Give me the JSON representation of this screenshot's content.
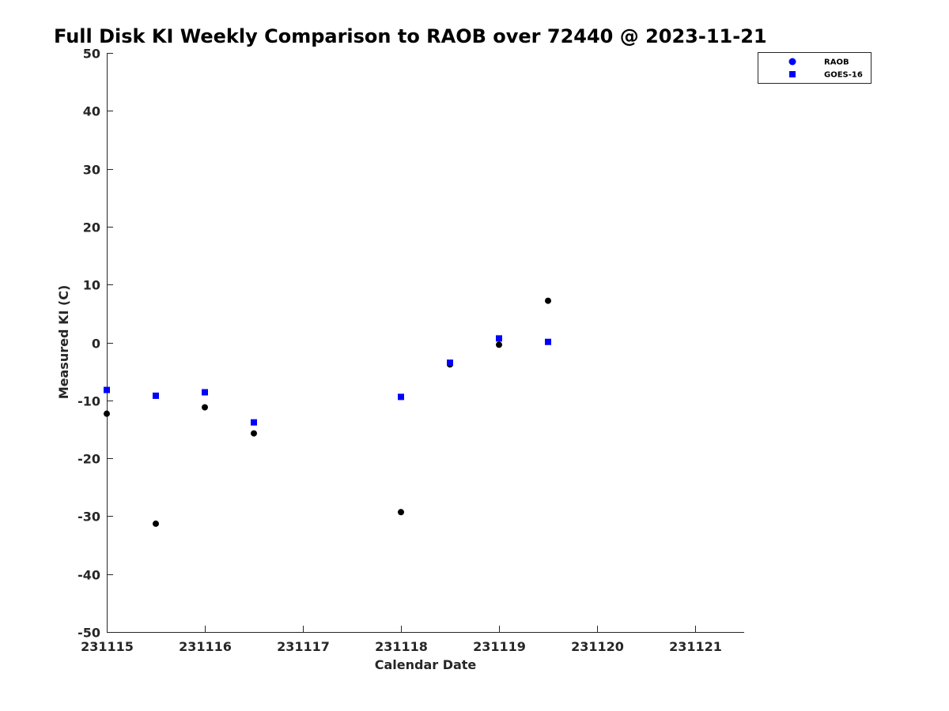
{
  "chart_data": {
    "type": "scatter",
    "title": "Full Disk KI Weekly Comparison to RAOB over 72440 @ 2023-11-21",
    "xlabel": "Calendar Date",
    "ylabel": "Measured KI (C)",
    "xlim": [
      231115,
      231121.5
    ],
    "ylim": [
      -50,
      50
    ],
    "x_ticks": [
      231115,
      231116,
      231117,
      231118,
      231119,
      231120,
      231121
    ],
    "x_tick_labels": [
      "231115",
      "231116",
      "231117",
      "231118",
      "231119",
      "231120",
      "231121"
    ],
    "y_ticks": [
      50,
      40,
      30,
      20,
      10,
      0,
      -10,
      -20,
      -30,
      -40,
      -50
    ],
    "y_tick_labels": [
      "50",
      "40",
      "30",
      "20",
      "10",
      "0",
      "-10",
      "-20",
      "-30",
      "-40",
      "-50"
    ],
    "grid": false,
    "legend_position": "top-right",
    "legend": [
      "RAOB",
      "GOES-16"
    ],
    "series": [
      {
        "name": "RAOB",
        "marker": "circle",
        "color": "#000000",
        "legend_color": "#0000ff",
        "x": [
          231115,
          231115.5,
          231116,
          231116.5,
          231118,
          231118.5,
          231119,
          231119.5
        ],
        "y": [
          -12.3,
          -31.3,
          -11.2,
          -15.7,
          -29.3,
          -3.8,
          -0.4,
          7.2
        ]
      },
      {
        "name": "GOES-16",
        "marker": "square",
        "color": "#0000ff",
        "legend_color": "#0000ff",
        "x": [
          231115,
          231115.5,
          231116,
          231116.5,
          231118,
          231118.5,
          231119,
          231119.5
        ],
        "y": [
          -8.2,
          -9.2,
          -8.6,
          -13.8,
          -9.4,
          -3.5,
          0.7,
          0.1
        ]
      }
    ]
  }
}
